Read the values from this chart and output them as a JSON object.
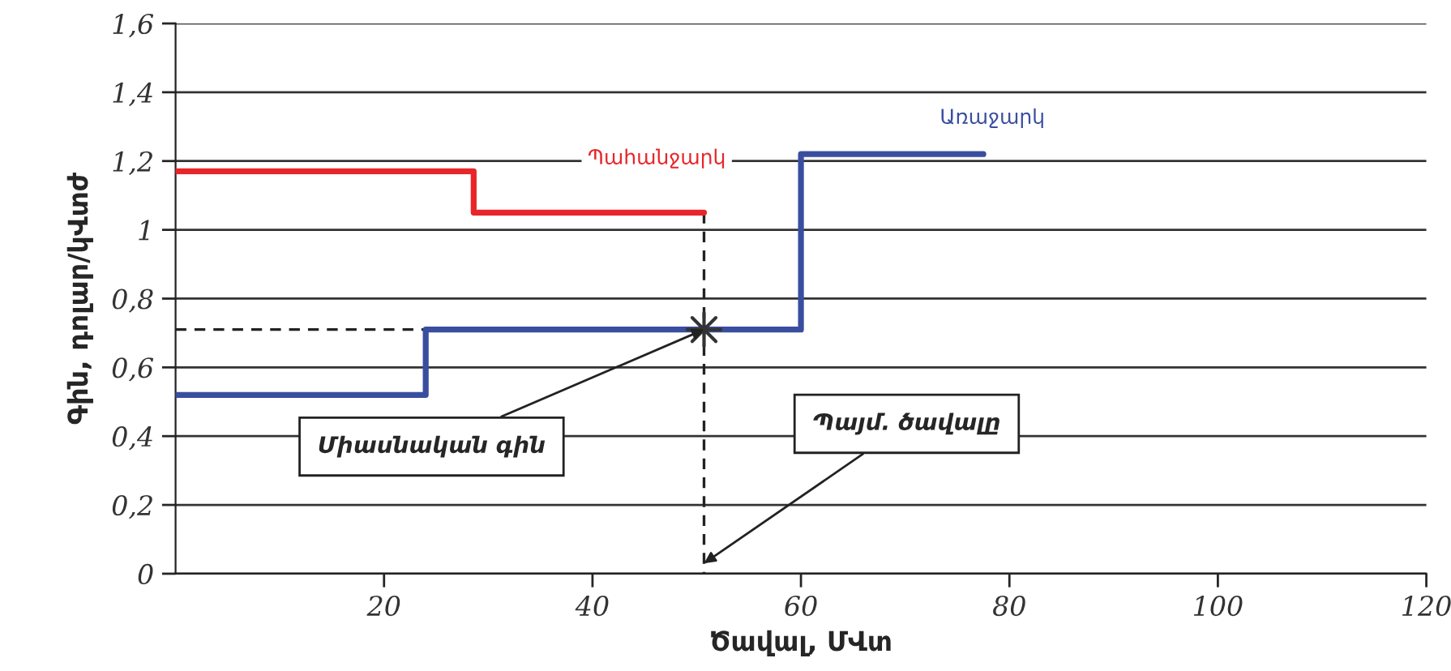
{
  "chart_data": {
    "type": "step",
    "xlabel": "Ծավալ, ՄՎտ",
    "ylabel": "Գին, դոլար/կՎտժ",
    "xlim": [
      0,
      120
    ],
    "ylim": [
      0,
      1.6
    ],
    "xticks": [
      20,
      40,
      60,
      80,
      100,
      120
    ],
    "yticks": [
      0,
      {
        "value": 0.2,
        "label": "0,2"
      },
      {
        "value": 0.4,
        "label": "0,4"
      },
      {
        "value": 0.6,
        "label": "0,6"
      },
      {
        "value": 0.8,
        "label": "0,8"
      },
      1,
      {
        "value": 1.2,
        "label": "1,2"
      },
      {
        "value": 1.4,
        "label": "1,4"
      },
      {
        "value": 1.6,
        "label": "1,6"
      }
    ],
    "grid": "y",
    "legend": false,
    "series": [
      {
        "name": "Պահանջարկ",
        "color": "#e8262a",
        "x": [
          0,
          28.6,
          50.7
        ],
        "values": [
          1.17,
          1.05,
          1.05
        ]
      },
      {
        "name": "Առաջարկ",
        "color": "#3a4ea0",
        "x": [
          0,
          24,
          60,
          77.5
        ],
        "values": [
          0.52,
          0.71,
          1.22,
          1.22
        ]
      },
      {
        "type": "line",
        "color": "#222222",
        "line_style": "dashed",
        "x": [
          0,
          50.7
        ],
        "values": [
          0.71,
          0.71
        ]
      },
      {
        "type": "line",
        "color": "#222222",
        "line_style": "dashed",
        "x": [
          50.7,
          50.7
        ],
        "values": [
          1.05,
          0
        ]
      },
      {
        "type": "scatter",
        "color": "#333333",
        "marker": "star",
        "x": [
          50.7
        ],
        "values": [
          0.71
        ]
      }
    ],
    "annotations": [
      {
        "text": "Միասնական գին",
        "x": 50.7,
        "y": 0.71
      },
      {
        "text": "Պայմ. ծավալը",
        "x": 50.7,
        "y": 0.03
      }
    ]
  }
}
